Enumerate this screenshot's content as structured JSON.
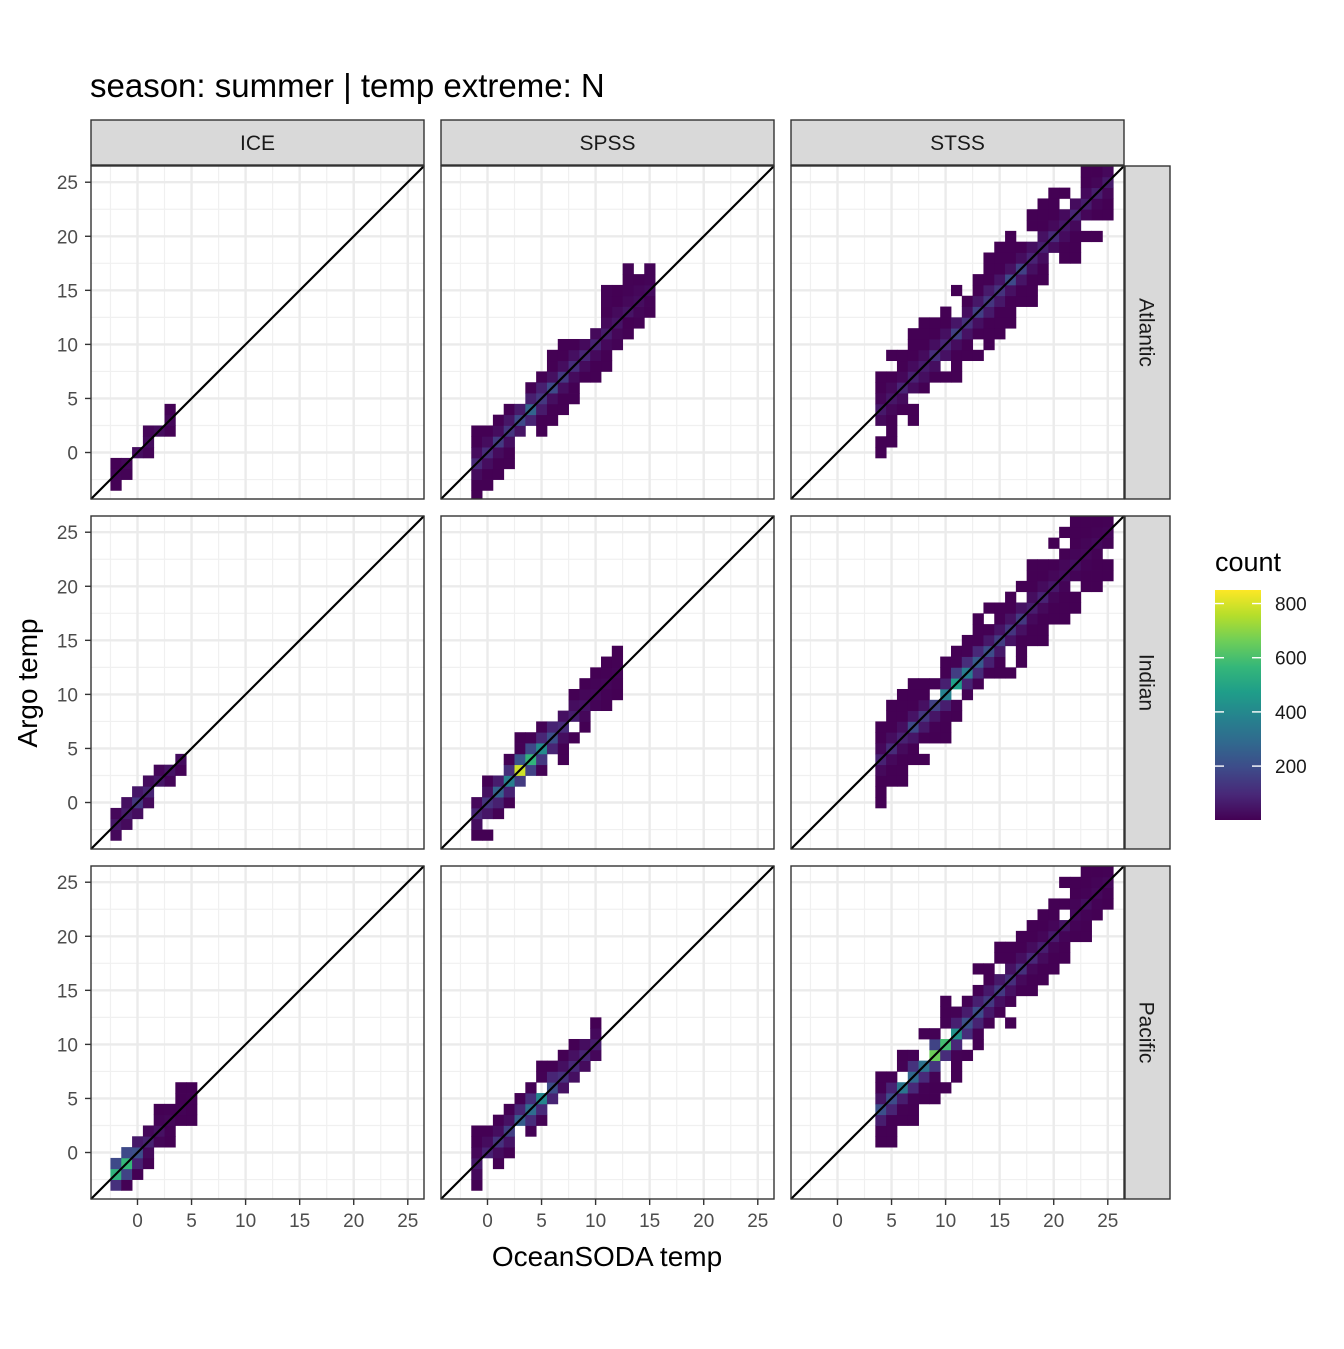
{
  "chart_data": {
    "type": "heatmap",
    "title": "season: summer | temp extreme: N",
    "xlabel": "OceanSODA temp",
    "ylabel": "Argo temp",
    "xlim": [
      -4.3,
      26.5
    ],
    "ylim": [
      -4.3,
      26.5
    ],
    "x_ticks": [
      0,
      5,
      10,
      15,
      20,
      25
    ],
    "y_ticks": [
      0,
      5,
      10,
      15,
      20,
      25
    ],
    "grid": true,
    "identity_line": true,
    "bin_width": 1,
    "columns": [
      "ICE",
      "SPSS",
      "STSS"
    ],
    "rows": [
      "Atlantic",
      "Indian",
      "Pacific"
    ],
    "legend": {
      "title": "count",
      "position": "right",
      "ticks": [
        200,
        400,
        600,
        800
      ],
      "min": 1,
      "max": 850,
      "colors": [
        "#440154",
        "#482878",
        "#3e4a89",
        "#31688e",
        "#26828e",
        "#1f9e89",
        "#35b779",
        "#6ece58",
        "#b5de2b",
        "#fde725"
      ]
    },
    "panels": [
      {
        "column": "ICE",
        "row": "Atlantic",
        "ridges": [
          {
            "x0": -1.5,
            "x1": 3.0,
            "dlo": -1.5,
            "dhi": 1.0,
            "peak": 40,
            "core": 1.0
          }
        ]
      },
      {
        "column": "SPSS",
        "row": "Atlantic",
        "ridges": [
          {
            "x0": -0.5,
            "x1": 15.0,
            "dlo": -3.0,
            "dhi": 3.0,
            "peak": 260,
            "core": 4.0,
            "decay": 0.22
          },
          {
            "x0": 11.0,
            "x1": 15.0,
            "dlo": -2.0,
            "dhi": 4.0,
            "peak": 8
          }
        ]
      },
      {
        "column": "STSS",
        "row": "Atlantic",
        "ridges": [
          {
            "x0": 4.5,
            "x1": 25.0,
            "dlo": -4.0,
            "dhi": 4.0,
            "peak": 200,
            "core": 14.0,
            "decay": 0.12
          }
        ]
      },
      {
        "column": "ICE",
        "row": "Indian",
        "ridges": [
          {
            "x0": -2.0,
            "x1": 3.5,
            "dlo": -1.5,
            "dhi": 1.5,
            "peak": 150,
            "core": 0.0
          }
        ]
      },
      {
        "column": "SPSS",
        "row": "Indian",
        "ridges": [
          {
            "x0": -0.5,
            "x1": 11.5,
            "dlo": -2.5,
            "dhi": 2.5,
            "peak": 850,
            "core": 3.5,
            "decay": 0.5
          }
        ]
      },
      {
        "column": "STSS",
        "row": "Indian",
        "ridges": [
          {
            "x0": 4.0,
            "x1": 25.0,
            "dlo": -4.0,
            "dhi": 4.0,
            "peak": 480,
            "core": 11.5,
            "decay": 0.25
          }
        ]
      },
      {
        "column": "ICE",
        "row": "Pacific",
        "ridges": [
          {
            "x0": -2.0,
            "x1": 4.5,
            "dlo": -2.0,
            "dhi": 1.5,
            "peak": 850,
            "core": -1.5,
            "decay": 0.9
          }
        ]
      },
      {
        "column": "SPSS",
        "row": "Pacific",
        "ridges": [
          {
            "x0": -1.0,
            "x1": 9.5,
            "dlo": -2.0,
            "dhi": 2.5,
            "peak": 420,
            "core": 4.5,
            "decay": 0.35
          }
        ]
      },
      {
        "column": "STSS",
        "row": "Pacific",
        "ridges": [
          {
            "x0": 4.0,
            "x1": 24.5,
            "dlo": -3.5,
            "dhi": 3.5,
            "peak": 620,
            "core": 9.0,
            "decay": 0.22
          }
        ]
      }
    ]
  }
}
